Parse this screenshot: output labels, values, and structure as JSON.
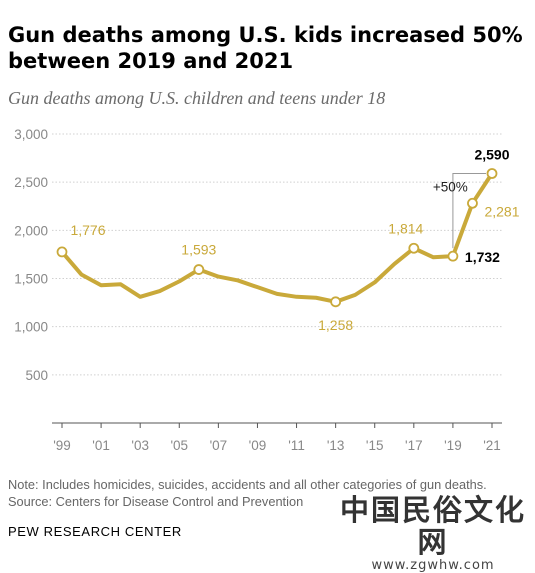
{
  "page": {
    "title": "Gun deaths among U.S. kids increased 50% between 2019 and 2021",
    "subtitle": "Gun deaths among U.S. children and teens under 18",
    "note": "Note: Includes homicides, suicides, accidents and all other categories of gun deaths.",
    "source": "Source: Centers for Disease Control and Prevention",
    "footer": "PEW RESEARCH CENTER",
    "watermark_cn": "中国民俗文化网",
    "watermark_url": "www.zgwhw.com"
  },
  "colors": {
    "line": "#c9a93a",
    "label_gold": "#c9a93a",
    "grid": "#d0d0d0",
    "axis_text": "#888888",
    "bracket": "#999999"
  },
  "chart_data": {
    "type": "line",
    "title": "Gun deaths among U.S. kids increased 50% between 2019 and 2021",
    "subtitle": "Gun deaths among U.S. children and teens under 18",
    "x": [
      1999,
      2000,
      2001,
      2002,
      2003,
      2004,
      2005,
      2006,
      2007,
      2008,
      2009,
      2010,
      2011,
      2012,
      2013,
      2014,
      2015,
      2016,
      2017,
      2018,
      2019,
      2020,
      2021
    ],
    "values": [
      1776,
      1540,
      1430,
      1440,
      1310,
      1370,
      1470,
      1593,
      1520,
      1480,
      1410,
      1340,
      1310,
      1300,
      1258,
      1330,
      1460,
      1650,
      1814,
      1720,
      1732,
      2281,
      2590
    ],
    "ylim": [
      0,
      3000
    ],
    "yticks": [
      500,
      1000,
      1500,
      2000,
      2500,
      3000
    ],
    "ytick_labels": [
      "500",
      "1,000",
      "1,500",
      "2,000",
      "2,500",
      "3,000"
    ],
    "xtick_labels": [
      "'99",
      "'01",
      "'03",
      "'05",
      "'07",
      "'09",
      "'11",
      "'13",
      "'15",
      "'17",
      "'19",
      "'21"
    ],
    "xtick_years": [
      1999,
      2001,
      2003,
      2005,
      2007,
      2009,
      2011,
      2013,
      2015,
      2017,
      2019,
      2021
    ],
    "grid": true,
    "labeled_points": [
      {
        "year": 1999,
        "label": "1,776",
        "style": "gold"
      },
      {
        "year": 2006,
        "label": "1,593",
        "style": "gold"
      },
      {
        "year": 2013,
        "label": "1,258",
        "style": "gold"
      },
      {
        "year": 2017,
        "label": "1,814",
        "style": "gold"
      },
      {
        "year": 2019,
        "label": "1,732",
        "style": "bold"
      },
      {
        "year": 2020,
        "label": "2,281",
        "style": "gold"
      },
      {
        "year": 2021,
        "label": "2,590",
        "style": "bold"
      }
    ],
    "annotation": {
      "text": "+50%",
      "from_year": 2019,
      "to_year": 2021
    }
  }
}
